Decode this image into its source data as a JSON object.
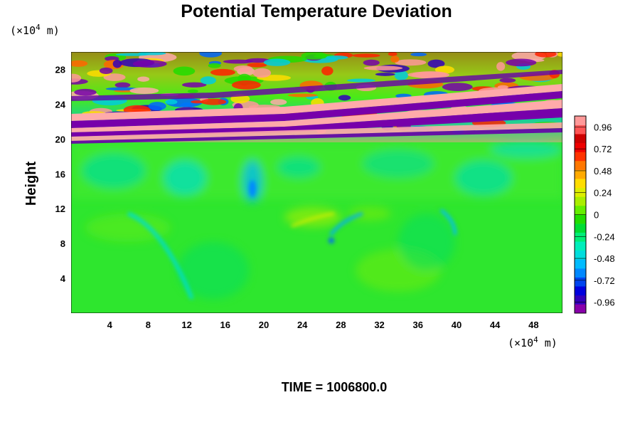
{
  "chart_data": {
    "type": "heatmap",
    "title": "Potential Temperature Deviation",
    "ylabel": "Height",
    "x_unit_prefix": "(×10",
    "x_unit_exp": "4",
    "x_unit_suffix": " m)",
    "y_unit_prefix": "(×10",
    "y_unit_exp": "4",
    "y_unit_suffix": " m)",
    "xlim": [
      0,
      51
    ],
    "ylim": [
      0,
      30
    ],
    "xticks": [
      4,
      8,
      12,
      16,
      20,
      24,
      28,
      32,
      36,
      40,
      44,
      48
    ],
    "yticks": [
      4,
      8,
      12,
      16,
      20,
      24,
      28
    ],
    "colorbar": {
      "range": [
        -1.08,
        1.08
      ],
      "ticks": [
        0.96,
        0.72,
        0.48,
        0.24,
        0,
        -0.24,
        -0.48,
        -0.72,
        -0.96
      ],
      "colors": [
        "#8800aa",
        "#3300bb",
        "#0000dd",
        "#0044ee",
        "#0088ff",
        "#00bbff",
        "#00dddd",
        "#00eebb",
        "#00ee77",
        "#00dd33",
        "#22dd00",
        "#66ee00",
        "#aaee00",
        "#ddee00",
        "#ffdd00",
        "#ffaa00",
        "#ff7700",
        "#ff3300",
        "#ee0000",
        "#cc0000",
        "#ff5555",
        "#ff9999"
      ]
    },
    "footer": "TIME = 1006800.0"
  }
}
